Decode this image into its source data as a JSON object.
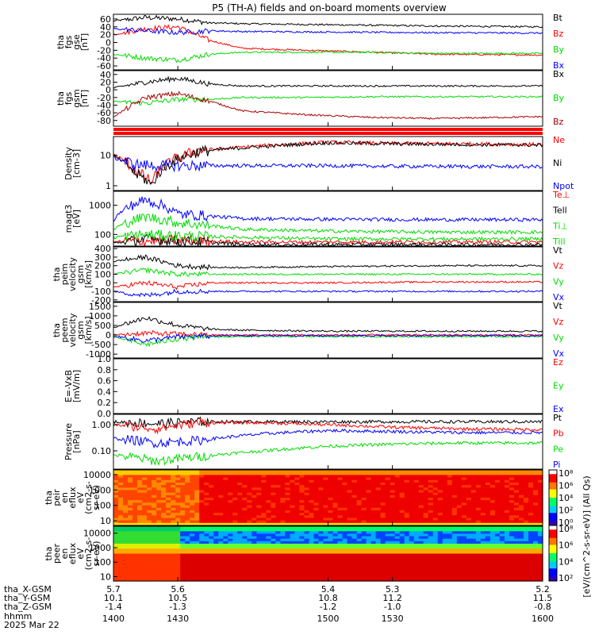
{
  "title": "P5 (TH-A) fields and on-board moments overview",
  "time_axis": {
    "x_range": [
      1400,
      1600
    ],
    "ticks": [
      {
        "hhmm": "1400",
        "x_gsm": "5.7",
        "y_gsm": "10.1",
        "z_gsm": "-1.4"
      },
      {
        "hhmm": "1430",
        "x_gsm": "5.6",
        "y_gsm": "10.5",
        "z_gsm": "-1.3"
      },
      {
        "hhmm": "1500",
        "x_gsm": "5.4",
        "y_gsm": "10.8",
        "z_gsm": "-1.2"
      },
      {
        "hhmm": "1530",
        "x_gsm": "5.3",
        "y_gsm": "11.2",
        "z_gsm": "-1.0"
      },
      {
        "hhmm": "1600",
        "x_gsm": "5.2",
        "y_gsm": "11.5",
        "z_gsm": "-0.8"
      }
    ],
    "row_labels": [
      "tha_X-GSM",
      "tha_Y-GSM",
      "tha_Z-GSM",
      "hhmm",
      "2025 Mar 22"
    ]
  },
  "colors": {
    "black": "#000000",
    "red": "#ff0000",
    "green": "#00dd00",
    "blue": "#0000ff",
    "darkred": "#aa0000"
  },
  "chart_data": [
    {
      "type": "line",
      "panel": "fgs-gse",
      "ylabel_lines": [
        "tha",
        "fgs",
        "gse",
        "[nT]"
      ],
      "yticks": [
        "60",
        "40",
        "20",
        "0",
        "-20",
        "-40",
        "-60"
      ],
      "ylim": [
        -70,
        72
      ],
      "series": [
        {
          "name": "Bt",
          "color": "black",
          "x": [
            1400,
            1415,
            1430,
            1445,
            1460,
            1490,
            1520,
            1550,
            1600
          ],
          "values": [
            55,
            64,
            60,
            50,
            48,
            46,
            44,
            42,
            40
          ]
        },
        {
          "name": "Bz",
          "color": "red",
          "x": [
            1400,
            1415,
            1430,
            1445,
            1460,
            1490,
            1520,
            1550,
            1600
          ],
          "values": [
            20,
            35,
            40,
            5,
            -15,
            -20,
            -25,
            -30,
            -32
          ]
        },
        {
          "name": "By",
          "color": "green",
          "x": [
            1400,
            1415,
            1430,
            1445,
            1460,
            1490,
            1520,
            1550,
            1600
          ],
          "values": [
            -30,
            -40,
            -45,
            -30,
            -25,
            -25,
            -25,
            -28,
            -28
          ]
        },
        {
          "name": "Bx",
          "color": "blue",
          "x": [
            1400,
            1415,
            1430,
            1445,
            1460,
            1490,
            1520,
            1550,
            1600
          ],
          "values": [
            35,
            30,
            25,
            30,
            28,
            27,
            26,
            25,
            24
          ]
        }
      ]
    },
    {
      "type": "line",
      "panel": "fgs-gsm",
      "ylabel_lines": [
        "tha",
        "fgs",
        "gsm",
        "[nT]"
      ],
      "yticks": [
        "40",
        "20",
        "0",
        "-20",
        "-40",
        "-60",
        "-80"
      ],
      "ylim": [
        -95,
        50
      ],
      "series": [
        {
          "name": "Bx",
          "color": "black",
          "x": [
            1400,
            1415,
            1430,
            1445,
            1460,
            1490,
            1520,
            1550,
            1600
          ],
          "values": [
            5,
            20,
            30,
            15,
            10,
            10,
            10,
            10,
            10
          ]
        },
        {
          "name": "By",
          "color": "green",
          "x": [
            1400,
            1415,
            1430,
            1445,
            1460,
            1490,
            1520,
            1550,
            1600
          ],
          "values": [
            -30,
            -35,
            -25,
            -25,
            -20,
            -20,
            -18,
            -18,
            -18
          ]
        },
        {
          "name": "Bz",
          "color": "darkred",
          "x": [
            1400,
            1415,
            1430,
            1445,
            1460,
            1490,
            1520,
            1550,
            1600
          ],
          "values": [
            -70,
            -20,
            -10,
            -30,
            -55,
            -65,
            -72,
            -75,
            -70
          ]
        }
      ]
    },
    {
      "type": "line",
      "panel": "density",
      "ylabel_lines": [
        "Density",
        "[cm-3]"
      ],
      "yticks": [
        "10",
        "1"
      ],
      "log": true,
      "ylim": [
        0.7,
        40
      ],
      "series": [
        {
          "name": "Ne",
          "color": "red",
          "x": [
            1400,
            1410,
            1418,
            1425,
            1440,
            1470,
            1500,
            1530,
            1600
          ],
          "values": [
            10,
            3,
            1.2,
            5,
            14,
            20,
            26,
            24,
            22
          ]
        },
        {
          "name": "Ni",
          "color": "black",
          "x": [
            1400,
            1410,
            1418,
            1425,
            1440,
            1470,
            1500,
            1530,
            1600
          ],
          "values": [
            9,
            2.5,
            1,
            4.5,
            13,
            19,
            25,
            23,
            21
          ]
        },
        {
          "name": "Npot",
          "color": "blue",
          "x": [
            1400,
            1410,
            1418,
            1425,
            1440,
            1470,
            1500,
            1530,
            1600
          ],
          "values": [
            8,
            5,
            4.5,
            4.5,
            4.5,
            4.5,
            4.5,
            4.3,
            4.2
          ]
        }
      ]
    },
    {
      "type": "line",
      "panel": "temperature",
      "ylabel_lines": [
        "magt3",
        "[eV]"
      ],
      "yticks": [
        "1000",
        "100"
      ],
      "log": true,
      "ylim": [
        40,
        3000
      ],
      "series": [
        {
          "name": "Te⊥",
          "color": "red",
          "x": [
            1400,
            1415,
            1430,
            1460,
            1500,
            1550,
            1600
          ],
          "values": [
            55,
            60,
            65,
            55,
            55,
            55,
            55
          ]
        },
        {
          "name": "Tell",
          "color": "black",
          "x": [
            1400,
            1415,
            1430,
            1460,
            1500,
            1550,
            1600
          ],
          "values": [
            50,
            70,
            60,
            45,
            45,
            45,
            45
          ]
        },
        {
          "name": "Ti⊥",
          "color": "green",
          "x": [
            1400,
            1415,
            1430,
            1460,
            1500,
            1550,
            1600
          ],
          "values": [
            150,
            400,
            250,
            150,
            130,
            120,
            120
          ]
        },
        {
          "name": "Till",
          "color": "green",
          "x": [
            1400,
            1415,
            1430,
            1460,
            1500,
            1550,
            1600
          ],
          "values": [
            80,
            100,
            90,
            80,
            70,
            70,
            70
          ]
        },
        {
          "name": "",
          "color": "blue",
          "x": [
            1400,
            1415,
            1430,
            1460,
            1500,
            1550,
            1600
          ],
          "values": [
            300,
            1500,
            500,
            350,
            330,
            320,
            320
          ]
        }
      ]
    },
    {
      "type": "line",
      "panel": "peim-velocity",
      "ylabel_lines": [
        "tha",
        "peim",
        "velocity",
        "gsm",
        "[km/s]"
      ],
      "yticks": [
        "400",
        "300",
        "200",
        "100",
        "0",
        "-100",
        "-200"
      ],
      "ylim": [
        -220,
        420
      ],
      "series": [
        {
          "name": "Vt",
          "color": "black",
          "x": [
            1400,
            1415,
            1430,
            1445,
            1460,
            1500,
            1550,
            1600
          ],
          "values": [
            250,
            300,
            200,
            180,
            180,
            190,
            200,
            200
          ]
        },
        {
          "name": "Vz",
          "color": "red",
          "x": [
            1400,
            1415,
            1430,
            1445,
            1460,
            1500,
            1550,
            1600
          ],
          "values": [
            -50,
            0,
            -50,
            0,
            0,
            0,
            10,
            10
          ]
        },
        {
          "name": "Vy",
          "color": "green",
          "x": [
            1400,
            1415,
            1430,
            1445,
            1460,
            1500,
            1550,
            1600
          ],
          "values": [
            100,
            150,
            100,
            100,
            100,
            100,
            100,
            100
          ]
        },
        {
          "name": "Vx",
          "color": "blue",
          "x": [
            1400,
            1415,
            1430,
            1445,
            1460,
            1500,
            1550,
            1600
          ],
          "values": [
            -100,
            -150,
            -100,
            -100,
            -100,
            -100,
            -100,
            -100
          ]
        }
      ]
    },
    {
      "type": "line",
      "panel": "peem-velocity",
      "ylabel_lines": [
        "tha",
        "peem",
        "velocity",
        "gsm",
        "[km/s]"
      ],
      "yticks": [
        "1500",
        "1000",
        "500",
        "0",
        "-500",
        "-1000"
      ],
      "ylim": [
        -1200,
        1700
      ],
      "series": [
        {
          "name": "Vt",
          "color": "black",
          "x": [
            1400,
            1415,
            1430,
            1445,
            1460,
            1500,
            1550,
            1600
          ],
          "values": [
            400,
            900,
            500,
            300,
            250,
            200,
            200,
            200
          ]
        },
        {
          "name": "Vz",
          "color": "red",
          "x": [
            1400,
            1415,
            1430,
            1445,
            1460,
            1500,
            1550,
            1600
          ],
          "values": [
            0,
            100,
            50,
            0,
            0,
            0,
            0,
            0
          ]
        },
        {
          "name": "Vy",
          "color": "green",
          "x": [
            1400,
            1415,
            1430,
            1445,
            1460,
            1500,
            1550,
            1600
          ],
          "values": [
            -100,
            -500,
            -200,
            -100,
            -80,
            -80,
            -80,
            -80
          ]
        },
        {
          "name": "Vx",
          "color": "blue",
          "x": [
            1400,
            1415,
            1430,
            1445,
            1460,
            1500,
            1550,
            1600
          ],
          "values": [
            -50,
            -300,
            -100,
            -50,
            -40,
            -40,
            -40,
            -40
          ]
        }
      ]
    },
    {
      "type": "line",
      "panel": "efield",
      "ylabel_lines": [
        "E=-VxB",
        "[mV/m]"
      ],
      "yticks": [
        "1.0",
        "0.8",
        "0.6",
        "0.4",
        "0.2",
        "0.0"
      ],
      "ylim": [
        0,
        1
      ],
      "series": [
        {
          "name": "Ez",
          "color": "red",
          "x": [],
          "values": []
        },
        {
          "name": "Ey",
          "color": "green",
          "x": [],
          "values": []
        },
        {
          "name": "Ex",
          "color": "blue",
          "x": [],
          "values": []
        }
      ]
    },
    {
      "type": "line",
      "panel": "pressure",
      "ylabel_lines": [
        "Pressure",
        "[nPa]"
      ],
      "yticks": [
        "1.00",
        "0.10"
      ],
      "log": true,
      "ylim": [
        0.02,
        2.5
      ],
      "series": [
        {
          "name": "Pt",
          "color": "black",
          "x": [
            1400,
            1420,
            1440,
            1470,
            1500,
            1530,
            1560,
            1600
          ],
          "values": [
            1.3,
            1.1,
            1.3,
            1.3,
            1.3,
            1.3,
            1.3,
            1.3
          ]
        },
        {
          "name": "Pb",
          "color": "red",
          "x": [
            1400,
            1420,
            1440,
            1470,
            1500,
            1530,
            1560,
            1600
          ],
          "values": [
            1.0,
            0.7,
            1.2,
            1.2,
            1.0,
            0.8,
            0.7,
            0.65
          ]
        },
        {
          "name": "Pe",
          "color": "green",
          "x": [
            1400,
            1420,
            1440,
            1470,
            1500,
            1530,
            1560,
            1600
          ],
          "values": [
            0.07,
            0.04,
            0.06,
            0.1,
            0.15,
            0.18,
            0.2,
            0.2
          ]
        },
        {
          "name": "Pi",
          "color": "blue",
          "x": [
            1400,
            1420,
            1440,
            1470,
            1500,
            1530,
            1560,
            1600
          ],
          "values": [
            0.3,
            0.2,
            0.25,
            0.45,
            0.6,
            0.55,
            0.5,
            0.5
          ]
        }
      ]
    },
    {
      "type": "heatmap",
      "panel": "peir-eflux",
      "ylabel_lines": [
        "tha",
        "peir",
        "en",
        "eflux",
        "eV",
        "(cm2-s-",
        "sr-eV)"
      ],
      "yticks": [
        "10000",
        "1000",
        "100",
        "10"
      ],
      "log": true,
      "ylim": [
        5,
        20000
      ]
    },
    {
      "type": "heatmap",
      "panel": "peer-eflux",
      "ylabel_lines": [
        "tha",
        "peer",
        "en",
        "eflux",
        "eV",
        "(cm2-s-",
        "sr-eV)"
      ],
      "yticks": [
        "10000",
        "1000",
        "100",
        "10"
      ],
      "log": true,
      "ylim": [
        5,
        30000
      ]
    }
  ],
  "colorbar": {
    "label": "[eV/(cm^2-s-sr-eV)] (All Qs)",
    "ticks_upper": [
      "10⁸",
      "10⁶",
      "10⁴",
      "10²",
      "10⁰"
    ],
    "ticks_lower": [
      "10⁸",
      "10⁶",
      "10⁴",
      "10²"
    ]
  }
}
